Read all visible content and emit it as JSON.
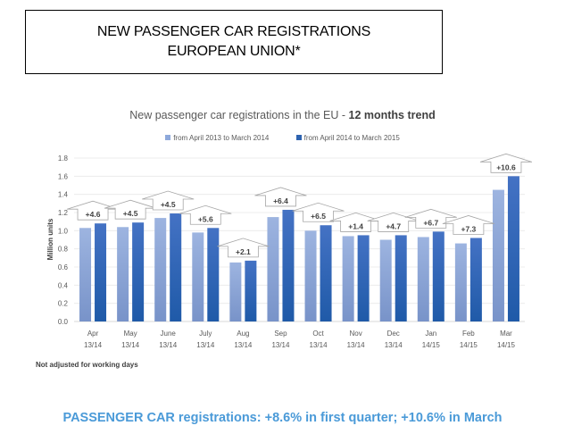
{
  "header": {
    "line1": "NEW PASSENGER CAR REGISTRATIONS",
    "line2": "EUROPEAN UNION*"
  },
  "footnote": "Not adjusted for working days",
  "summary": "PASSENGER CAR registrations: +8.6% in first quarter; +10.6% in March",
  "chart_data": {
    "type": "bar",
    "title": "New passenger car registrations in the EU - ",
    "title_bold": "12 months trend",
    "xlabel": "",
    "ylabel": "Million units",
    "ylim": [
      0,
      1.8
    ],
    "yticks": [
      "0.0",
      "0.2",
      "0.4",
      "0.6",
      "0.8",
      "1.0",
      "1.2",
      "1.4",
      "1.6",
      "1.8"
    ],
    "grid": true,
    "legend_position": "top-center",
    "categories": [
      {
        "month": "Apr",
        "period": "13/14"
      },
      {
        "month": "May",
        "period": "13/14"
      },
      {
        "month": "June",
        "period": "13/14"
      },
      {
        "month": "July",
        "period": "13/14"
      },
      {
        "month": "Aug",
        "period": "13/14"
      },
      {
        "month": "Sep",
        "period": "13/14"
      },
      {
        "month": "Oct",
        "period": "13/14"
      },
      {
        "month": "Nov",
        "period": "13/14"
      },
      {
        "month": "Dec",
        "period": "13/14"
      },
      {
        "month": "Jan",
        "period": "14/15"
      },
      {
        "month": "Feb",
        "period": "14/15"
      },
      {
        "month": "Mar",
        "period": "14/15"
      }
    ],
    "series": [
      {
        "name": "from April 2013 to March 2014",
        "color": "#8ea9db",
        "values": [
          1.03,
          1.04,
          1.14,
          0.98,
          0.65,
          1.15,
          1.0,
          0.94,
          0.9,
          0.93,
          0.86,
          1.45
        ]
      },
      {
        "name": "from April 2014 to March 2015",
        "color": "#2e63b0",
        "values": [
          1.08,
          1.09,
          1.19,
          1.03,
          0.67,
          1.23,
          1.06,
          0.95,
          0.95,
          0.99,
          0.92,
          1.6
        ]
      }
    ],
    "annotations": [
      "+4.6",
      "+4.5",
      "+4.5",
      "+5.6",
      "+2.1",
      "+6.4",
      "+6.5",
      "+1.4",
      "+4.7",
      "+6.7",
      "+7.3",
      "+10.6"
    ]
  }
}
